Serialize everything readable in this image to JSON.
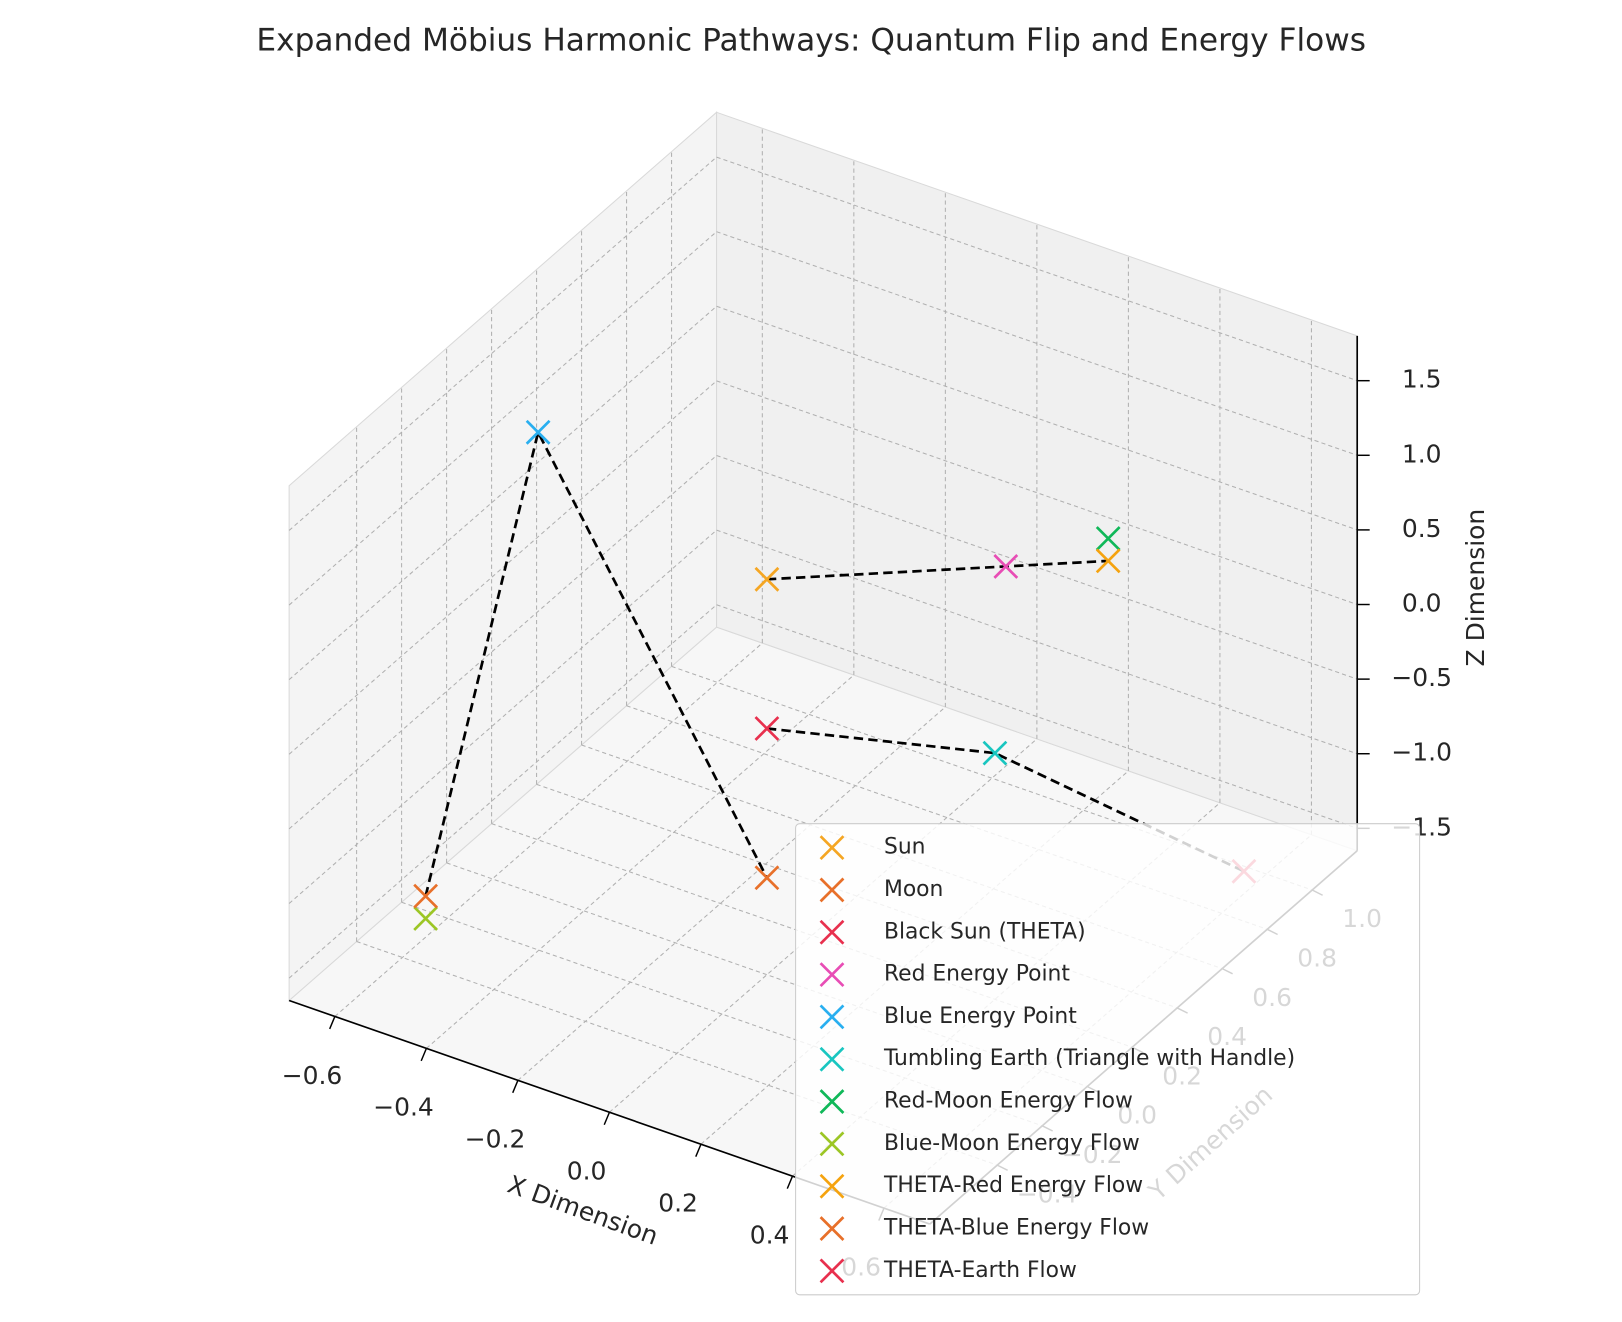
{
  "chart_data": {
    "type": "scatter3d",
    "title": "Expanded Möbius Harmonic Pathways: Quantum Flip and Energy Flows",
    "x_label": "X Dimension",
    "y_label": "Y Dimension",
    "z_label": "Z Dimension",
    "xlim": [
      -0.7,
      0.7
    ],
    "ylim": [
      -0.7,
      1.2
    ],
    "zlim": [
      -1.65,
      1.8
    ],
    "xticks": [
      {
        "value": -0.6,
        "label": "−0.6"
      },
      {
        "value": -0.4,
        "label": "−0.4"
      },
      {
        "value": -0.2,
        "label": "−0.2"
      },
      {
        "value": 0,
        "label": "0.0"
      },
      0.2,
      0.4,
      0.6
    ],
    "yticks": [
      {
        "value": -0.4,
        "label": "−0.4"
      },
      {
        "value": -0.2,
        "label": "−0.2"
      },
      {
        "value": 0,
        "label": "0.0"
      },
      0.2,
      0.4,
      0.6,
      0.8,
      {
        "value": 1,
        "label": "1.0"
      }
    ],
    "zticks": [
      {
        "value": -1.5,
        "label": "−1.5"
      },
      {
        "value": -1,
        "label": "−1.0"
      },
      {
        "value": -0.5,
        "label": "−0.5"
      },
      {
        "value": 0,
        "label": "0.0"
      },
      0.5,
      {
        "value": 1,
        "label": "1.0"
      },
      1.5
    ],
    "grid": true,
    "series": [
      {
        "name": "Sun",
        "color": "#f5a623",
        "x": 0,
        "y": 0,
        "z": 1
      },
      {
        "name": "Moon",
        "color": "#e8702a",
        "x": 0,
        "y": 0,
        "z": -1
      },
      {
        "name": "Black Sun (THETA)",
        "color": "#e8304e",
        "x": 0,
        "y": 0,
        "z": 0
      },
      {
        "name": "Red Energy Point",
        "color": "#e84db5",
        "x": 0.35,
        "y": 0.35,
        "z": 1
      },
      {
        "name": "Blue Energy Point",
        "color": "#29aff0",
        "x": -0.5,
        "y": 0,
        "z": 1.45
      },
      {
        "name": "Tumbling Earth (Triangle with Handle)",
        "color": "#19c6c0",
        "x": 0.4,
        "y": 0.2,
        "z": 0
      },
      {
        "name": "Red-Moon Energy Flow",
        "color": "#10b859",
        "x": 0.5,
        "y": 0.5,
        "z": 1.15
      },
      {
        "name": "Blue-Moon Energy Flow",
        "color": "#9cc625",
        "x": -0.5,
        "y": -0.5,
        "z": -1.15
      },
      {
        "name": "THETA-Red Energy Flow",
        "color": "#f5a30f",
        "x": 0.5,
        "y": 0.5,
        "z": 1
      },
      {
        "name": "THETA-Blue Energy Flow",
        "color": "#e8702a",
        "x": -0.5,
        "y": -0.5,
        "z": -1
      },
      {
        "name": "THETA-Earth Flow",
        "color": "#e8304e",
        "x": 0.6,
        "y": 0.9,
        "z": -1.5
      }
    ],
    "lines": [
      {
        "color": "#000000",
        "x": [
          -0.5,
          -0.5,
          0
        ],
        "y": [
          -0.5,
          0,
          0
        ],
        "z": [
          -1,
          1.45,
          -1
        ]
      },
      {
        "color": "#000000",
        "x": [
          0,
          0.35,
          0.5
        ],
        "y": [
          0,
          0.35,
          0.5
        ],
        "z": [
          1,
          1,
          1
        ]
      },
      {
        "color": "#000000",
        "x": [
          0,
          0.4,
          0.6
        ],
        "y": [
          0,
          0.2,
          0.9
        ],
        "z": [
          0,
          0,
          -1.5
        ]
      }
    ]
  }
}
